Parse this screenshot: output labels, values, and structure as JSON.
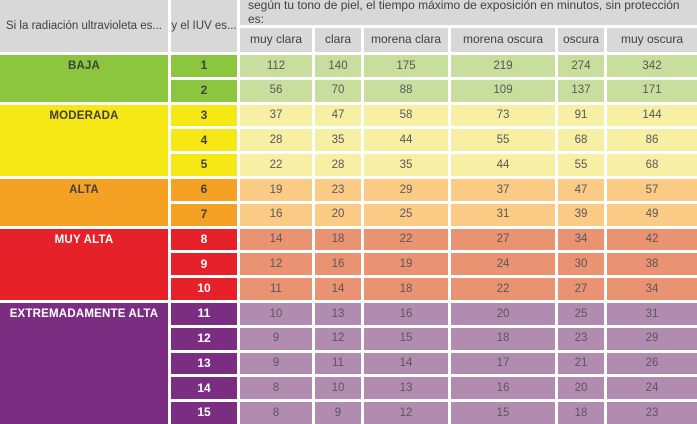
{
  "headers": {
    "radiation": "Si la radiación ultravioleta es...",
    "iuv": "y el IUV es...",
    "skin": "según tu tono de piel, el tiempo máximo de exposición en minutos, sin protección es:"
  },
  "colors": {
    "header_bg": "#d8d8d8",
    "header_text": "#414042",
    "data_text": "#58585b",
    "grid_line": "#ffffff"
  },
  "band_styles": {
    "BAJA": {
      "band_color": "#8cc63f",
      "data_color": "#c7de9d",
      "label_color": "#414042"
    },
    "MODERADA": {
      "band_color": "#f5e814",
      "data_color": "#f6efa4",
      "label_color": "#414042"
    },
    "ALTA": {
      "band_color": "#f5a123",
      "data_color": "#fbca85",
      "label_color": "#414042"
    },
    "MUY ALTA": {
      "band_color": "#e62129",
      "data_color": "#e99372",
      "label_color": "#ffffff"
    },
    "EXTREMADAMENTE ALTA": {
      "band_color": "#7b2d81",
      "data_color": "#b28cb0",
      "label_color": "#ffffff"
    }
  },
  "chart_data": {
    "type": "table",
    "title": "según tu tono de piel, el tiempo máximo de exposición en minutos, sin protección es:",
    "row_header_label": "Si la radiación ultravioleta es...",
    "iuv_header_label": "y el IUV es...",
    "columns": [
      "muy clara",
      "clara",
      "morena clara",
      "morena oscura",
      "oscura",
      "muy oscura"
    ],
    "row_groups": [
      "BAJA",
      "MODERADA",
      "ALTA",
      "MUY ALTA",
      "EXTREMADAMENTE ALTA"
    ],
    "rows": [
      {
        "group": "BAJA",
        "iuv": "1",
        "minutes": [
          112,
          140,
          175,
          219,
          274,
          342
        ]
      },
      {
        "group": "BAJA",
        "iuv": "2",
        "minutes": [
          56,
          70,
          88,
          109,
          137,
          171
        ]
      },
      {
        "group": "MODERADA",
        "iuv": "3",
        "minutes": [
          37,
          47,
          58,
          73,
          91,
          144
        ]
      },
      {
        "group": "MODERADA",
        "iuv": "4",
        "minutes": [
          28,
          35,
          44,
          55,
          68,
          86
        ]
      },
      {
        "group": "MODERADA",
        "iuv": "5",
        "minutes": [
          22,
          28,
          35,
          44,
          55,
          68
        ]
      },
      {
        "group": "ALTA",
        "iuv": "6",
        "minutes": [
          19,
          23,
          29,
          37,
          47,
          57
        ]
      },
      {
        "group": "ALTA",
        "iuv": "7",
        "minutes": [
          16,
          20,
          25,
          31,
          39,
          49
        ]
      },
      {
        "group": "MUY ALTA",
        "iuv": "8",
        "minutes": [
          14,
          18,
          22,
          27,
          34,
          42
        ]
      },
      {
        "group": "MUY ALTA",
        "iuv": "9",
        "minutes": [
          12,
          16,
          19,
          24,
          30,
          38
        ]
      },
      {
        "group": "MUY ALTA",
        "iuv": "10",
        "minutes": [
          11,
          14,
          18,
          22,
          27,
          34
        ]
      },
      {
        "group": "EXTREMADAMENTE ALTA",
        "iuv": "11",
        "minutes": [
          10,
          13,
          16,
          20,
          25,
          31
        ]
      },
      {
        "group": "EXTREMADAMENTE ALTA",
        "iuv": "12",
        "minutes": [
          9,
          12,
          15,
          18,
          23,
          29
        ]
      },
      {
        "group": "EXTREMADAMENTE ALTA",
        "iuv": "13",
        "minutes": [
          9,
          11,
          14,
          17,
          21,
          26
        ]
      },
      {
        "group": "EXTREMADAMENTE ALTA",
        "iuv": "14",
        "minutes": [
          8,
          10,
          13,
          16,
          20,
          24
        ]
      },
      {
        "group": "EXTREMADAMENTE ALTA",
        "iuv": "15",
        "minutes": [
          8,
          9,
          12,
          15,
          18,
          23
        ]
      }
    ]
  }
}
